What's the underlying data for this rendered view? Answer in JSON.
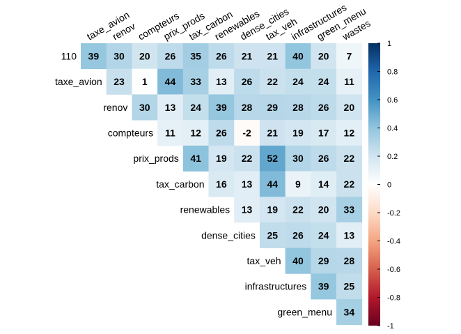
{
  "chart_data": {
    "type": "heatmap",
    "variant": "upper-triangle-correlation-matrix",
    "title": "",
    "xlabel": "",
    "ylabel": "",
    "columns": [
      "taxe_avion",
      "renov",
      "compteurs",
      "prix_prods",
      "tax_carbon",
      "renewables",
      "dense_cities",
      "tax_veh",
      "infrastructures",
      "green_menu",
      "wastes"
    ],
    "rows": [
      "110",
      "taxe_avion",
      "renov",
      "compteurs",
      "prix_prods",
      "tax_carbon",
      "renewables",
      "dense_cities",
      "tax_veh",
      "infrastructures",
      "green_menu"
    ],
    "values": [
      [
        39,
        30,
        20,
        26,
        35,
        26,
        21,
        21,
        40,
        20,
        7
      ],
      [
        23,
        1,
        44,
        33,
        13,
        26,
        22,
        24,
        24,
        11
      ],
      [
        30,
        13,
        24,
        39,
        28,
        29,
        28,
        26,
        20
      ],
      [
        11,
        12,
        26,
        -2,
        21,
        19,
        17,
        12
      ],
      [
        41,
        19,
        22,
        52,
        30,
        26,
        22
      ],
      [
        16,
        13,
        44,
        9,
        14,
        22
      ],
      [
        13,
        19,
        22,
        20,
        33
      ],
      [
        25,
        26,
        24,
        13
      ],
      [
        40,
        29,
        28
      ],
      [
        39,
        25
      ],
      [
        34
      ]
    ],
    "value_scale": "correlation x 100",
    "color_scale": {
      "range": [
        -1,
        1
      ],
      "ticks": [
        "1",
        "0.8",
        "0.6",
        "0.4",
        "0.2",
        "0",
        "-0.2",
        "-0.4",
        "-0.6",
        "-0.8",
        "-1"
      ],
      "stops": [
        {
          "v": -1.0,
          "color": "#67001f"
        },
        {
          "v": -0.8,
          "color": "#b2182b"
        },
        {
          "v": -0.6,
          "color": "#d6604d"
        },
        {
          "v": -0.4,
          "color": "#f4a582"
        },
        {
          "v": -0.2,
          "color": "#fddbc7"
        },
        {
          "v": 0.0,
          "color": "#ffffff"
        },
        {
          "v": 0.2,
          "color": "#d1e5f0"
        },
        {
          "v": 0.4,
          "color": "#92c5de"
        },
        {
          "v": 0.6,
          "color": "#4393c3"
        },
        {
          "v": 0.8,
          "color": "#2166ac"
        },
        {
          "v": 1.0,
          "color": "#053061"
        }
      ]
    },
    "legend": "right"
  }
}
